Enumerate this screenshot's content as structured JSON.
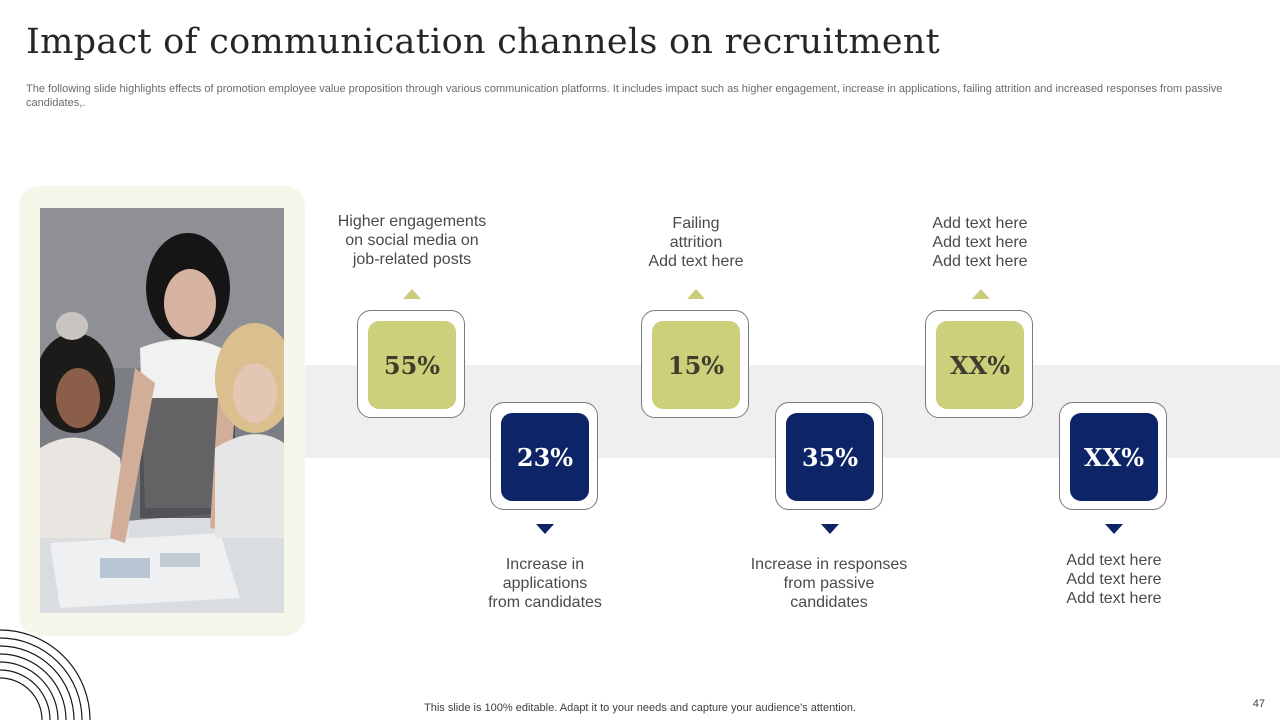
{
  "slide": {
    "title": "Impact of communication channels on recruitment",
    "subtitle": "The following slide highlights effects of promotion employee value proposition through various communication platforms. It includes impact such as higher engagement, increase in applications, failing attrition and increased responses from passive candidates,.",
    "footer": "This slide is 100% editable. Adapt it to your needs and capture your audience's attention.",
    "page_number": "47"
  },
  "colors": {
    "green": "#cdd07a",
    "navy": "#0d2466",
    "band": "#efefef",
    "frame": "#f6f6ea"
  },
  "metrics": [
    {
      "value": "55%",
      "color": "green",
      "position": "top",
      "label": [
        "Higher engagements",
        "on social media on",
        "job-related posts"
      ]
    },
    {
      "value": "23%",
      "color": "navy",
      "position": "bottom",
      "label": [
        "Increase  in",
        "applications",
        "from candidates"
      ]
    },
    {
      "value": "15%",
      "color": "green",
      "position": "top",
      "label": [
        "Failing",
        "attrition",
        "Add text here"
      ]
    },
    {
      "value": "35%",
      "color": "navy",
      "position": "bottom",
      "label": [
        "Increase  in responses",
        "from passive",
        "candidates"
      ]
    },
    {
      "value": "XX%",
      "color": "green",
      "position": "top",
      "label": [
        "Add text here",
        "Add text here",
        "Add text here"
      ]
    },
    {
      "value": "XX%",
      "color": "navy",
      "position": "bottom",
      "label": [
        "Add text here",
        "Add text here",
        "Add text here"
      ]
    }
  ]
}
